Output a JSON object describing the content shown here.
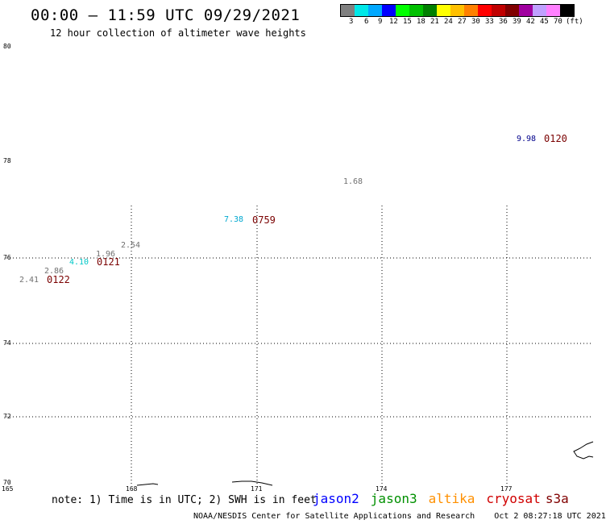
{
  "header": {
    "title": "00:00 – 11:59 UTC 09/29/2021",
    "subtitle": "12 hour collection of altimeter wave heights"
  },
  "legend": {
    "unit": "(ft)",
    "colors": [
      "#808080",
      "#00e8e8",
      "#00a8ff",
      "#0000ff",
      "#00ff00",
      "#00c000",
      "#008000",
      "#ffff00",
      "#ffc000",
      "#ff8000",
      "#ff0000",
      "#c00000",
      "#800000",
      "#a000a0",
      "#c0a0ff",
      "#ff80ff",
      "#000000"
    ],
    "labels": [
      "3",
      "6",
      "9",
      "12",
      "15",
      "18",
      "21",
      "24",
      "27",
      "30",
      "33",
      "36",
      "39",
      "42",
      "45",
      "70"
    ]
  },
  "axes": {
    "lat_labels": [
      "80",
      "78",
      "76",
      "74",
      "72",
      "70"
    ],
    "lon_labels": [
      "165",
      "168",
      "171",
      "174",
      "177"
    ]
  },
  "observations": [
    {
      "value": "9.98",
      "color": "#00008b"
    },
    {
      "value": "1.68",
      "color": "#707070"
    },
    {
      "value": "7.38",
      "color": "#00a8d0"
    },
    {
      "value": "2.54",
      "color": "#707070"
    },
    {
      "value": "1.96",
      "color": "#707070"
    },
    {
      "value": "4.10",
      "color": "#00c8c8"
    },
    {
      "value": "2.86",
      "color": "#707070"
    },
    {
      "value": "2.41",
      "color": "#707070"
    }
  ],
  "times": [
    "0120",
    "0759",
    "0121",
    "0122"
  ],
  "footer": {
    "note": "note: 1) Time is in UTC; 2) SWH is in feet",
    "satellites": [
      {
        "name": "jason2",
        "color": "#0000ff"
      },
      {
        "name": "jason3",
        "color": "#009000"
      },
      {
        "name": "altika",
        "color": "#ff9000"
      },
      {
        "name": "cryosat",
        "color": "#d00000"
      },
      {
        "name": "s3a",
        "color": "#800000"
      }
    ],
    "credit": "NOAA/NESDIS Center for Satellite Applications and Research",
    "timestamp": "Oct  2 08:27:18 UTC 2021"
  }
}
